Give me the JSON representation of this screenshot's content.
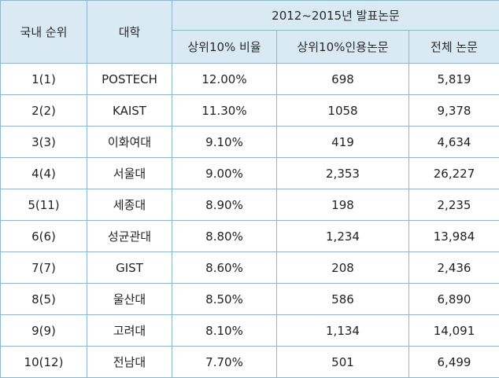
{
  "header": {
    "rank": "국내 순위",
    "university": "대학",
    "group": "2012~2015년 발표논문",
    "ratio": "상위10% 비율",
    "cited": "상위10%인용논문",
    "total": "전체 논문"
  },
  "rows": [
    {
      "rank": "1(1)",
      "university": "POSTECH",
      "ratio": "12.00%",
      "cited": "698",
      "total": "5,819"
    },
    {
      "rank": "2(2)",
      "university": "KAIST",
      "ratio": "11.30%",
      "cited": "1058",
      "total": "9,378"
    },
    {
      "rank": "3(3)",
      "university": "이화여대",
      "ratio": "9.10%",
      "cited": "419",
      "total": "4,634"
    },
    {
      "rank": "4(4)",
      "university": "서울대",
      "ratio": "9.00%",
      "cited": "2,353",
      "total": "26,227"
    },
    {
      "rank": "5(11)",
      "university": "세종대",
      "ratio": "8.90%",
      "cited": "198",
      "total": "2,235"
    },
    {
      "rank": "6(6)",
      "university": "성균관대",
      "ratio": "8.80%",
      "cited": "1,234",
      "total": "13,984"
    },
    {
      "rank": "7(7)",
      "university": "GIST",
      "ratio": "8.60%",
      "cited": "208",
      "total": "2,436"
    },
    {
      "rank": "8(5)",
      "university": "울산대",
      "ratio": "8.50%",
      "cited": "586",
      "total": "6,890"
    },
    {
      "rank": "9(9)",
      "university": "고려대",
      "ratio": "8.10%",
      "cited": "1,134",
      "total": "14,091"
    },
    {
      "rank": "10(12)",
      "university": "전남대",
      "ratio": "7.70%",
      "cited": "501",
      "total": "6,499"
    }
  ]
}
